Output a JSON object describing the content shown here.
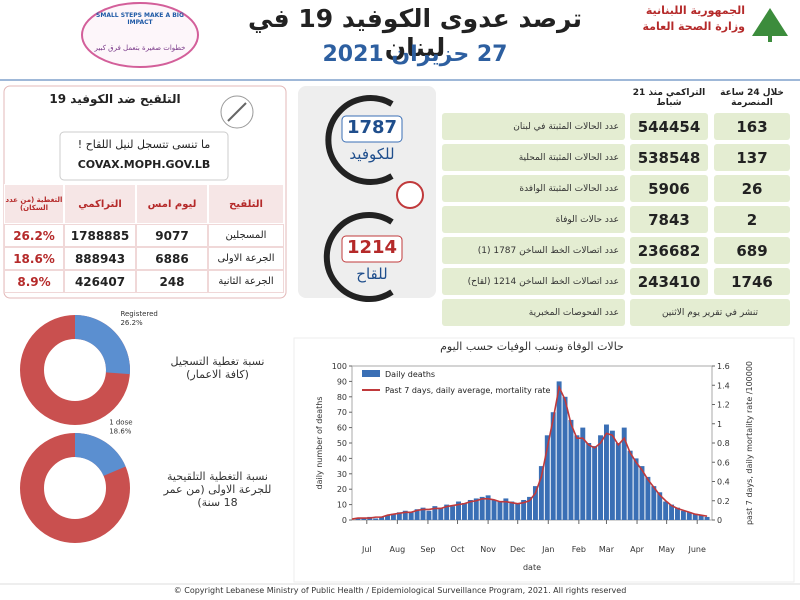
{
  "header": {
    "ministry": "الجمهورية اللبنانية",
    "department": "وزارة الصحة العامة",
    "title": "ترصد عدوى الكوفيد 19 في لبنان",
    "date": "27 حزيران 2021",
    "campaign_en": "SMALL STEPS MAKE A BIG IMPACT",
    "campaign_ar": "خطوات صغيرة بتعمل فرق كبير"
  },
  "stats": {
    "headers": [
      "خلال 24 ساعة المنصرمة",
      "التراكمي منذ 21 شباط"
    ],
    "rows": [
      {
        "label": "عدد الحالات المثبتة في لبنان",
        "last_24h": 163,
        "cumulative": 544454
      },
      {
        "label": "عدد الحالات المثبتة المحلية",
        "last_24h": 137,
        "cumulative": 538548
      },
      {
        "label": "عدد الحالات المثبتة الوافدة",
        "last_24h": 26,
        "cumulative": 5906
      },
      {
        "label": "عدد حالات الوفاة",
        "last_24h": 2,
        "cumulative": 7843
      },
      {
        "label": "عدد اتصالات الخط الساخن 1787 (1)",
        "last_24h": 689,
        "cumulative": 236682
      },
      {
        "label": "عدد اتصالات الخط الساخن 1214 (لقاح)",
        "last_24h": 1746,
        "cumulative": 243410
      }
    ],
    "tests": {
      "label": "عدد الفحوصات المخبرية",
      "note": "تنشر في تقرير يوم الاثنين"
    }
  },
  "hotlines": [
    {
      "number": 1787,
      "label": "للكوفيد"
    },
    {
      "number": 1214,
      "label": "للقاح"
    }
  ],
  "vaccination": {
    "title": "التلقيح ضد الكوفيد 19",
    "reminder": "ما تنسى تتسجل لنيل اللقاح !",
    "website": "COVAX.MOPH.GOV.LB",
    "columns": [
      "التلقيح",
      "ليوم امس",
      "التراكمي",
      "التغطية (من عدد السكان)"
    ],
    "rows": [
      {
        "label": "المسجلين",
        "yesterday": 9077,
        "cumulative": 1788885,
        "coverage": "26.2%"
      },
      {
        "label": "الجرعة الاولى",
        "yesterday": 6886,
        "cumulative": 888943,
        "coverage": "18.6%"
      },
      {
        "label": "الجرعة الثانية",
        "yesterday": 248,
        "cumulative": 426407,
        "coverage": "8.9%"
      }
    ]
  },
  "coverage_charts": [
    {
      "type": "pie",
      "title": "نسبة تغطية التسجيل (كافة الاعمار)",
      "background_color": "#c9504f",
      "series": [
        {
          "name": "Registered",
          "value": 26.2,
          "value_label": "26.2%",
          "color": "#5b8fd0"
        }
      ]
    },
    {
      "type": "pie",
      "title": "نسبة التغطية التلقيحية للجرعة الاولى (من عمر 18 سنة)",
      "background_color": "#c9504f",
      "series": [
        {
          "name": "1 dose",
          "value": 18.6,
          "value_label": "18.6%",
          "color": "#5b8fd0"
        }
      ]
    }
  ],
  "deaths_chart": {
    "type": "bar-line",
    "title": "حالات الوفاة ونسب الوفيات حسب اليوم",
    "x_label": "date",
    "y_label": "daily number of deaths",
    "y2_label": "past 7 days, daily mortality rate /100000",
    "x": [
      0,
      6,
      12,
      18,
      24,
      30,
      36,
      42,
      48,
      54,
      60,
      66,
      72,
      78,
      84,
      90,
      96,
      102,
      108,
      114,
      120,
      126,
      132,
      138,
      144,
      150,
      156,
      162,
      168,
      174,
      180,
      186,
      192,
      198,
      204,
      210,
      216,
      222,
      228,
      234,
      240,
      246,
      252,
      258,
      264,
      270,
      276,
      282,
      288,
      294,
      300,
      306,
      312,
      318,
      324,
      330,
      336,
      342,
      348,
      354,
      360
    ],
    "xlim": [
      0,
      365
    ],
    "xticks": [
      {
        "value": 15,
        "label": "Jul"
      },
      {
        "value": 46,
        "label": "Aug"
      },
      {
        "value": 77,
        "label": "Sep"
      },
      {
        "value": 107,
        "label": "Oct"
      },
      {
        "value": 138,
        "label": "Nov"
      },
      {
        "value": 168,
        "label": "Dec"
      },
      {
        "value": 199,
        "label": "Jan"
      },
      {
        "value": 230,
        "label": "Feb"
      },
      {
        "value": 258,
        "label": "Mar"
      },
      {
        "value": 289,
        "label": "Apr"
      },
      {
        "value": 319,
        "label": "May"
      },
      {
        "value": 350,
        "label": "June"
      }
    ],
    "ylim": [
      0,
      100
    ],
    "yticks": [
      0,
      10,
      20,
      30,
      40,
      50,
      60,
      70,
      80,
      90,
      100
    ],
    "y2lim": [
      0,
      1.6
    ],
    "y2ticks": [
      0,
      0.2,
      0.4,
      0.6,
      0.8,
      1,
      1.2,
      1.4,
      1.6
    ],
    "series": [
      {
        "name": "Daily deaths",
        "type": "bar",
        "color": "#3a6fb5",
        "values": [
          0,
          1,
          1,
          2,
          1,
          2,
          3,
          4,
          5,
          6,
          5,
          7,
          8,
          6,
          9,
          8,
          10,
          9,
          12,
          11,
          13,
          14,
          15,
          16,
          13,
          12,
          14,
          12,
          11,
          13,
          15,
          22,
          35,
          55,
          70,
          90,
          80,
          65,
          55,
          60,
          50,
          48,
          55,
          62,
          58,
          50,
          60,
          45,
          40,
          35,
          28,
          22,
          18,
          12,
          10,
          8,
          6,
          5,
          4,
          3,
          2
        ]
      },
      {
        "name": "Past 7 days, daily average, mortality rate",
        "type": "line",
        "axis": "y2",
        "color": "#c0393b",
        "values": [
          0.01,
          0.02,
          0.02,
          0.02,
          0.03,
          0.03,
          0.05,
          0.06,
          0.07,
          0.08,
          0.08,
          0.1,
          0.11,
          0.11,
          0.12,
          0.12,
          0.14,
          0.15,
          0.16,
          0.17,
          0.19,
          0.2,
          0.22,
          0.22,
          0.21,
          0.19,
          0.19,
          0.18,
          0.17,
          0.18,
          0.2,
          0.28,
          0.45,
          0.75,
          1.05,
          1.38,
          1.25,
          1.0,
          0.85,
          0.85,
          0.78,
          0.75,
          0.8,
          0.9,
          0.88,
          0.78,
          0.85,
          0.7,
          0.6,
          0.52,
          0.42,
          0.34,
          0.26,
          0.2,
          0.15,
          0.12,
          0.1,
          0.08,
          0.06,
          0.05,
          0.04
        ]
      }
    ]
  },
  "footer": "© Copyright Lebanese Ministry of Public Health / Epidemiological Surveillance Program, 2021. All rights reserved"
}
